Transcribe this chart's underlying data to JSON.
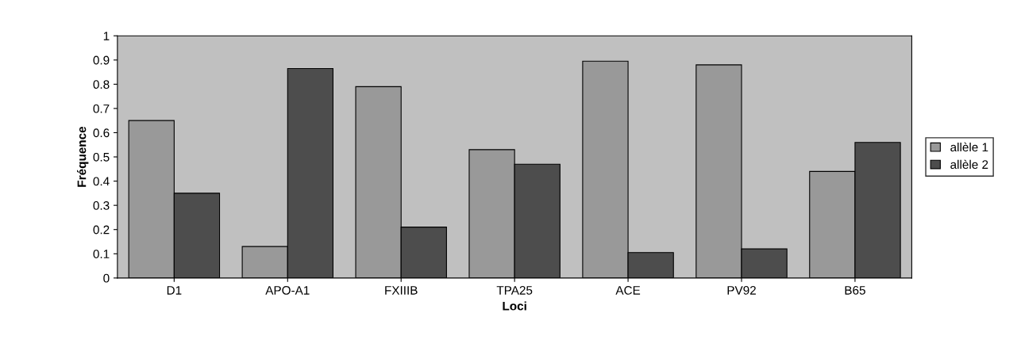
{
  "chart_data": {
    "type": "bar",
    "xlabel": "Loci",
    "ylabel": "Fréquence",
    "categories": [
      "D1",
      "APO-A1",
      "FXIIIB",
      "TPA25",
      "ACE",
      "PV92",
      "B65"
    ],
    "series": [
      {
        "name": "allèle 1",
        "color": "#999999",
        "values": [
          0.65,
          0.13,
          0.79,
          0.53,
          0.895,
          0.88,
          0.44
        ]
      },
      {
        "name": "allèle 2",
        "color": "#4d4d4d",
        "values": [
          0.35,
          0.865,
          0.21,
          0.47,
          0.105,
          0.12,
          0.56
        ]
      }
    ],
    "ylim": [
      0,
      1
    ],
    "yticks": [
      0,
      0.1,
      0.2,
      0.3,
      0.4,
      0.5,
      0.6,
      0.7,
      0.8,
      0.9,
      1
    ],
    "grid": false,
    "legend": "right"
  }
}
